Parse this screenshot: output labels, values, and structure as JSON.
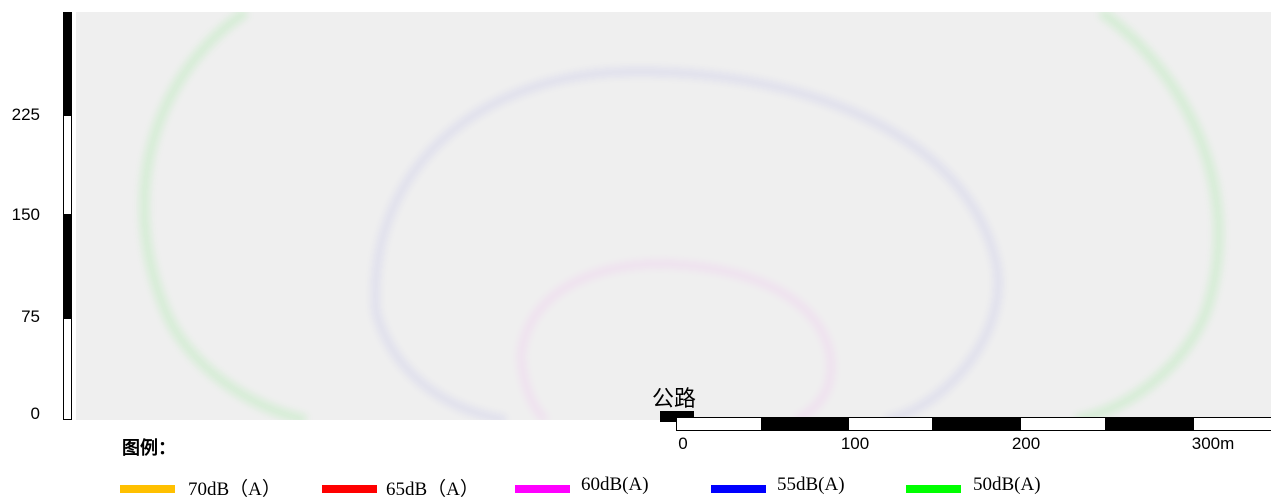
{
  "map": {
    "road_label": "公路",
    "contours": [
      {
        "level": "50dB(A)",
        "color": "#22dd22"
      },
      {
        "level": "55dB(A)",
        "color": "#1a1ad0"
      },
      {
        "level": "60dB(A)",
        "color": "#ee22ee"
      }
    ]
  },
  "y_axis": {
    "ticks": [
      "0",
      "75",
      "150",
      "225"
    ]
  },
  "x_axis": {
    "ticks": [
      "0",
      "100",
      "200",
      "300m"
    ]
  },
  "legend": {
    "title": "图例：",
    "items": [
      {
        "label": "70dB（A）",
        "color": "#ffc000"
      },
      {
        "label": "65dB（A）",
        "color": "#ff0000"
      },
      {
        "label": "60dB(A)",
        "color": "#ff00ff"
      },
      {
        "label": "55dB(A)",
        "color": "#0000ff"
      },
      {
        "label": "50dB(A)",
        "color": "#00ff00"
      }
    ]
  }
}
